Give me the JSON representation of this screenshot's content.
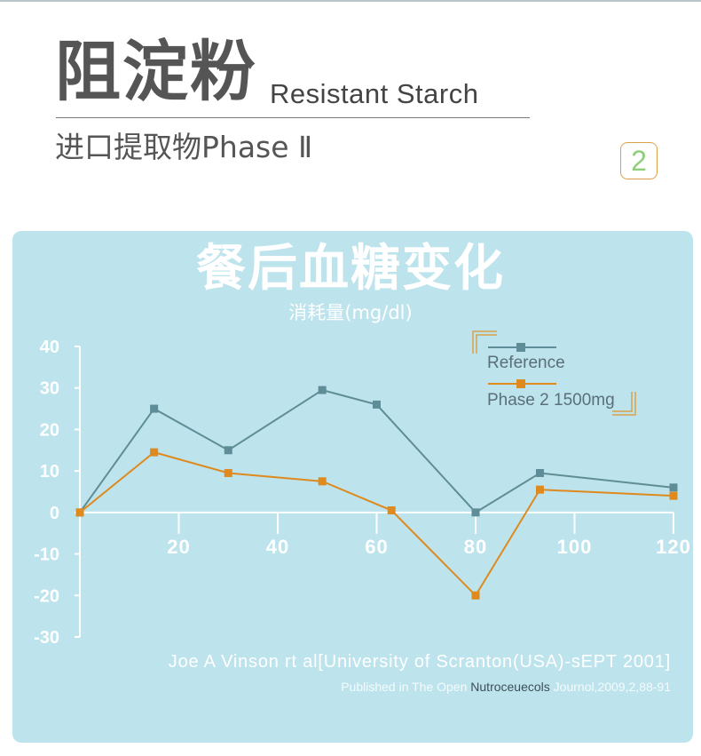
{
  "header": {
    "title_cn": "阻淀粉",
    "title_en": "Resistant Starch",
    "subtitle": "进口提取物Phase Ⅱ",
    "badge": "2"
  },
  "panel": {
    "title": "餐后血糖变化",
    "subtitle": "消耗量(mg/dl)",
    "credit": "Joe A Vinson rt al[University of Scranton(USA)-sEPT 2001]",
    "source_prefix": "Published in The Open ",
    "source_journal": "Nutroceuecols",
    "source_suffix": " Journol,2009,2,88-91"
  },
  "colors": {
    "reference": "#5f8d97",
    "phase2": "#de8a1e",
    "axis": "#ffffff",
    "panel_bg": "#bde3ec",
    "badge_border": "#d9a24a",
    "badge_digit": "#8fcf7a"
  },
  "chart_data": {
    "type": "line",
    "x_ticks": [
      20,
      40,
      60,
      80,
      100,
      120
    ],
    "y_ticks": [
      40,
      30,
      20,
      10,
      0,
      -10,
      -20,
      -30
    ],
    "xlim": [
      0,
      120
    ],
    "ylim": [
      -30,
      40
    ],
    "legend_position": "top-right",
    "grid": false,
    "series": [
      {
        "name": "Reference",
        "color": "#5f8d97",
        "points": [
          [
            0,
            0
          ],
          [
            15,
            25
          ],
          [
            30,
            15
          ],
          [
            49,
            29.5
          ],
          [
            60,
            26
          ],
          [
            80,
            0
          ],
          [
            93,
            9.5
          ],
          [
            120,
            6
          ]
        ]
      },
      {
        "name": "Phase 2  1500mg",
        "color": "#de8a1e",
        "points": [
          [
            0,
            0
          ],
          [
            15,
            14.5
          ],
          [
            30,
            9.5
          ],
          [
            49,
            7.5
          ],
          [
            63,
            0.5
          ],
          [
            80,
            -20
          ],
          [
            93,
            5.5
          ],
          [
            120,
            4
          ]
        ]
      }
    ]
  }
}
